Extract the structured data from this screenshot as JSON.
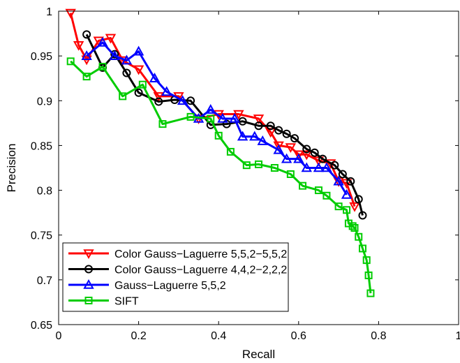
{
  "chart_data": {
    "type": "line",
    "xlabel": "Recall",
    "ylabel": "Precision",
    "xlim": [
      0,
      1
    ],
    "ylim": [
      0.65,
      1
    ],
    "xticks": [
      0,
      0.2,
      0.4,
      0.6,
      0.8,
      1
    ],
    "yticks": [
      0.65,
      0.7,
      0.75,
      0.8,
      0.85,
      0.9,
      0.95,
      1
    ],
    "xtick_labels": [
      "0",
      "0.2",
      "0.4",
      "0.6",
      "0.8",
      "1"
    ],
    "ytick_labels": [
      "0.65",
      "0.7",
      "0.75",
      "0.8",
      "0.85",
      "0.9",
      "0.95",
      "1"
    ],
    "grid": false,
    "legend_position": "bottom-left",
    "series": [
      {
        "name": "Color Gauss−Laguerre 5,5,2−5,5,2",
        "color": "#ff0000",
        "marker": "triangle-down",
        "x": [
          0.03,
          0.05,
          0.07,
          0.1,
          0.13,
          0.16,
          0.2,
          0.25,
          0.3,
          0.35,
          0.4,
          0.45,
          0.5,
          0.53,
          0.55,
          0.58,
          0.6,
          0.62,
          0.65,
          0.68,
          0.7,
          0.72,
          0.74
        ],
        "y": [
          0.998,
          0.962,
          0.946,
          0.967,
          0.97,
          0.945,
          0.935,
          0.905,
          0.905,
          0.88,
          0.885,
          0.885,
          0.88,
          0.865,
          0.85,
          0.848,
          0.84,
          0.84,
          0.833,
          0.83,
          0.81,
          0.808,
          0.782
        ]
      },
      {
        "name": "Color Gauss−Laguerre 4,4,2−2,2,2",
        "color": "#000000",
        "marker": "circle",
        "x": [
          0.07,
          0.11,
          0.14,
          0.17,
          0.2,
          0.25,
          0.29,
          0.33,
          0.38,
          0.42,
          0.46,
          0.5,
          0.53,
          0.55,
          0.57,
          0.59,
          0.62,
          0.64,
          0.66,
          0.69,
          0.71,
          0.73,
          0.75,
          0.76
        ],
        "y": [
          0.974,
          0.937,
          0.952,
          0.931,
          0.909,
          0.899,
          0.901,
          0.9,
          0.873,
          0.874,
          0.877,
          0.872,
          0.872,
          0.867,
          0.863,
          0.858,
          0.846,
          0.842,
          0.835,
          0.828,
          0.818,
          0.81,
          0.79,
          0.772
        ]
      },
      {
        "name": "Gauss−Laguerre 5,5,2",
        "color": "#0000ff",
        "marker": "triangle-up",
        "x": [
          0.07,
          0.11,
          0.14,
          0.17,
          0.2,
          0.24,
          0.27,
          0.31,
          0.35,
          0.38,
          0.41,
          0.44,
          0.46,
          0.49,
          0.51,
          0.55,
          0.57,
          0.6,
          0.62,
          0.65,
          0.67,
          0.7,
          0.72
        ],
        "y": [
          0.95,
          0.965,
          0.95,
          0.945,
          0.955,
          0.925,
          0.91,
          0.9,
          0.88,
          0.89,
          0.88,
          0.88,
          0.86,
          0.86,
          0.855,
          0.845,
          0.835,
          0.835,
          0.825,
          0.825,
          0.825,
          0.81,
          0.795
        ]
      },
      {
        "name": "SIFT",
        "color": "#00cc00",
        "marker": "square",
        "x": [
          0.03,
          0.07,
          0.11,
          0.16,
          0.21,
          0.26,
          0.33,
          0.38,
          0.4,
          0.43,
          0.47,
          0.5,
          0.54,
          0.58,
          0.61,
          0.65,
          0.67,
          0.7,
          0.72,
          0.725,
          0.735,
          0.74,
          0.75,
          0.76,
          0.77,
          0.775,
          0.78
        ],
        "y": [
          0.944,
          0.927,
          0.938,
          0.905,
          0.918,
          0.874,
          0.882,
          0.88,
          0.861,
          0.843,
          0.828,
          0.829,
          0.825,
          0.818,
          0.805,
          0.8,
          0.794,
          0.782,
          0.778,
          0.763,
          0.76,
          0.758,
          0.748,
          0.735,
          0.722,
          0.705,
          0.685
        ]
      }
    ]
  }
}
